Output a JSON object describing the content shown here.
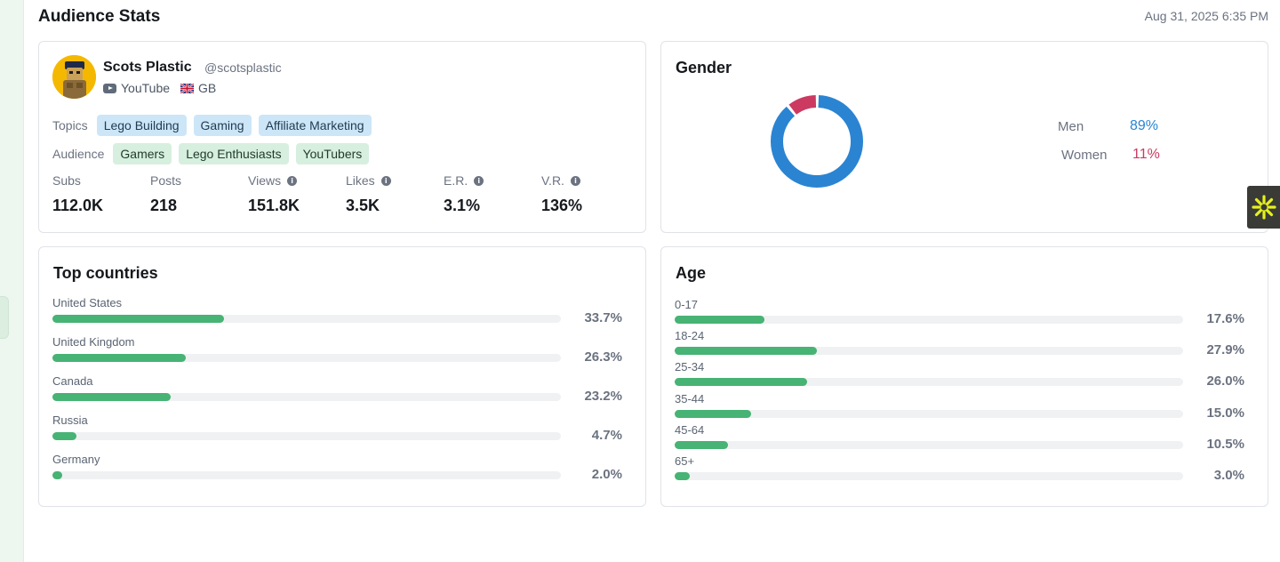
{
  "header": {
    "title": "Audience Stats",
    "timestamp": "Aug 31, 2025 6:35 PM"
  },
  "profile": {
    "name": "Scots Plastic",
    "handle": "@scotsplastic",
    "platform": "YouTube",
    "country": "GB",
    "topics_label": "Topics",
    "topics": [
      "Lego Building",
      "Gaming",
      "Affiliate Marketing"
    ],
    "audience_label": "Audience",
    "audience": [
      "Gamers",
      "Lego Enthusiasts",
      "YouTubers"
    ],
    "stats": [
      {
        "label": "Subs",
        "value": "112.0K",
        "info": false
      },
      {
        "label": "Posts",
        "value": "218",
        "info": false
      },
      {
        "label": "Views",
        "value": "151.8K",
        "info": true
      },
      {
        "label": "Likes",
        "value": "3.5K",
        "info": true
      },
      {
        "label": "E.R.",
        "value": "3.1%",
        "info": true
      },
      {
        "label": "V.R.",
        "value": "136%",
        "info": true
      }
    ]
  },
  "gender": {
    "title": "Gender",
    "items": [
      {
        "label": "Men",
        "value": "89%",
        "percent": 89,
        "color": "#2a84d2"
      },
      {
        "label": "Women",
        "value": "11%",
        "percent": 11,
        "color": "#cc3a61"
      }
    ]
  },
  "countries": {
    "title": "Top countries",
    "items": [
      {
        "label": "United States",
        "value": "33.7%",
        "percent": 33.7
      },
      {
        "label": "United Kingdom",
        "value": "26.3%",
        "percent": 26.3
      },
      {
        "label": "Canada",
        "value": "23.2%",
        "percent": 23.2
      },
      {
        "label": "Russia",
        "value": "4.7%",
        "percent": 4.7
      },
      {
        "label": "Germany",
        "value": "2.0%",
        "percent": 2.0
      }
    ]
  },
  "age": {
    "title": "Age",
    "items": [
      {
        "label": "0-17",
        "value": "17.6%",
        "percent": 17.6
      },
      {
        "label": "18-24",
        "value": "27.9%",
        "percent": 27.9
      },
      {
        "label": "25-34",
        "value": "26.0%",
        "percent": 26.0
      },
      {
        "label": "35-44",
        "value": "15.0%",
        "percent": 15.0
      },
      {
        "label": "45-64",
        "value": "10.5%",
        "percent": 10.5
      },
      {
        "label": "65+",
        "value": "3.0%",
        "percent": 3.0
      }
    ]
  },
  "colors": {
    "bar": "#47b374",
    "men": "#2a84d2",
    "women": "#cc3a61"
  },
  "icons": [
    "youtube-icon",
    "uk-flag-icon",
    "info-icon",
    "asterisk-icon",
    "avatar"
  ]
}
